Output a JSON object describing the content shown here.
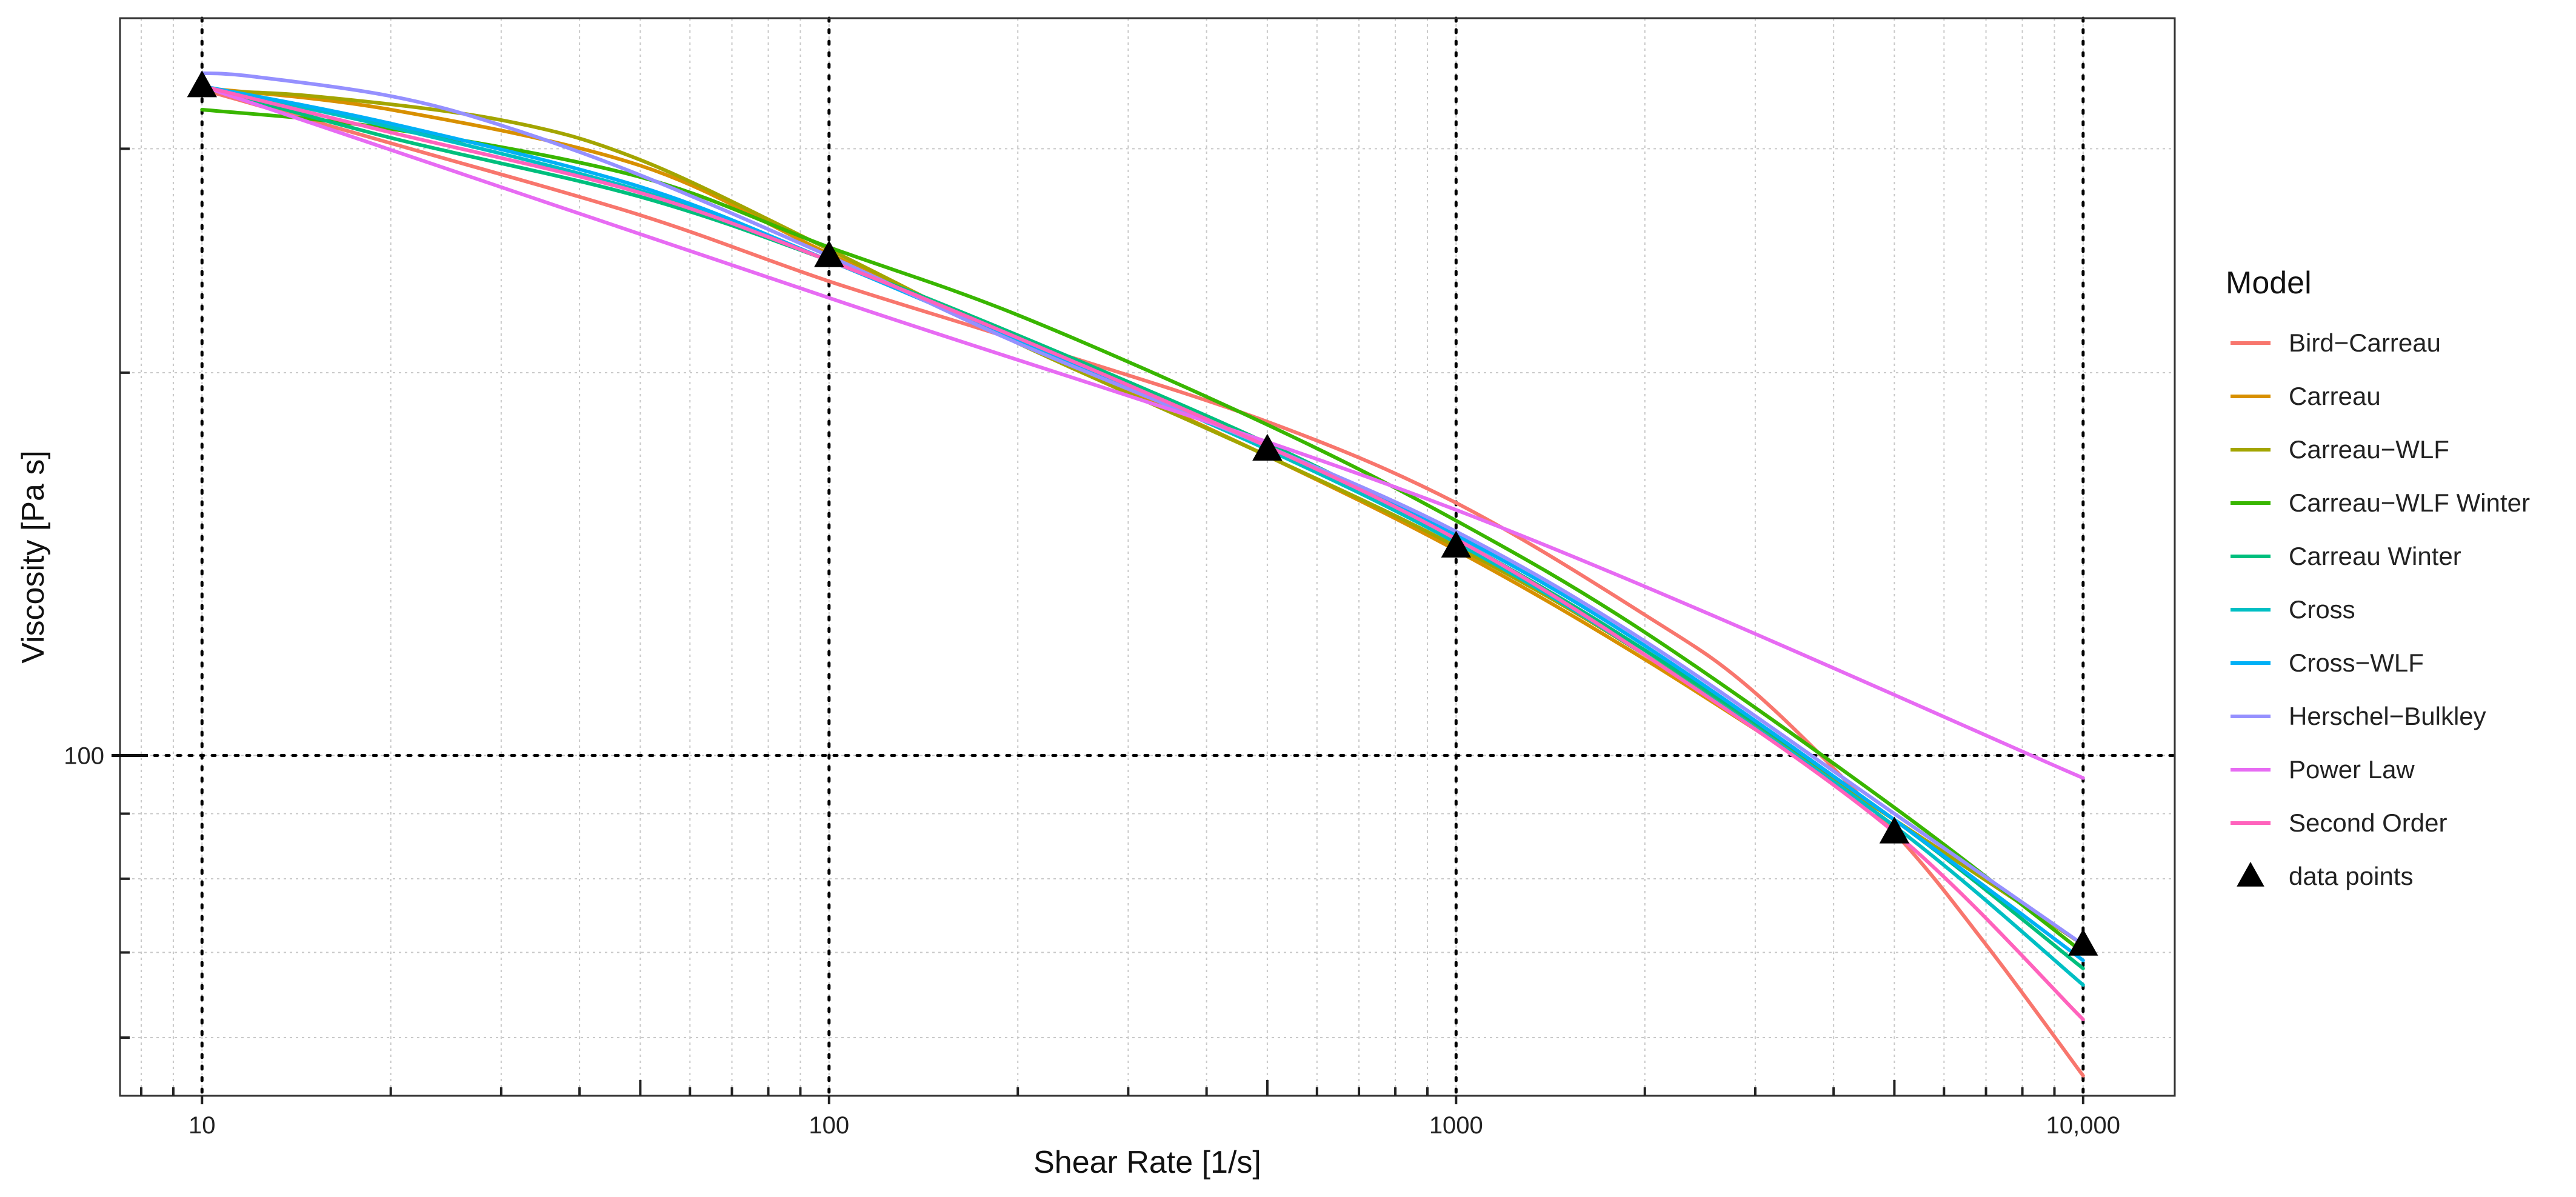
{
  "chart_data": {
    "type": "line",
    "x_scale": "log",
    "y_scale": "log",
    "xlabel": "Shear Rate [1/s]",
    "ylabel": "Viscosity [Pa s]",
    "xlim": [
      7.4,
      14000
    ],
    "ylim": [
      54,
      380
    ],
    "x_ticks": [
      10,
      100,
      1000,
      10000
    ],
    "x_tick_labels": [
      "10",
      "100",
      "1000",
      "10,000"
    ],
    "y_ticks": [
      100
    ],
    "y_tick_labels": [
      "100"
    ],
    "grid": true,
    "legend_title": "Model",
    "legend_position": "right",
    "series": [
      {
        "name": "Bird−Carreau",
        "color": "#F8766D",
        "x": [
          10,
          20,
          50,
          100,
          200,
          500,
          1000,
          2000,
          3000,
          5000,
          7000,
          10000
        ],
        "y": [
          334,
          303,
          266,
          236,
          212,
          183,
          158,
          129,
          112,
          87,
          71,
          56
        ]
      },
      {
        "name": "Carreau",
        "color": "#D89000",
        "x": [
          10,
          20,
          50,
          100,
          200,
          500,
          1000,
          2000,
          5000,
          10000
        ],
        "y": [
          335,
          322,
          291,
          248,
          212,
          172,
          145,
          119,
          89,
          71
        ]
      },
      {
        "name": "Carreau−WLF",
        "color": "#A3A500",
        "x": [
          10,
          15,
          30,
          50,
          100,
          200,
          500,
          1000,
          2000,
          5000,
          10000
        ],
        "y": [
          333,
          330,
          316,
          294,
          250,
          211,
          172,
          146,
          120,
          89,
          71
        ]
      },
      {
        "name": "Carreau−WLF Winter",
        "color": "#39B600",
        "x": [
          10,
          20,
          50,
          100,
          200,
          500,
          1000,
          2000,
          5000,
          10000
        ],
        "y": [
          322,
          311,
          285,
          251,
          222,
          182,
          153,
          125,
          91,
          70
        ]
      },
      {
        "name": "Carreau Winter",
        "color": "#00BF7D",
        "x": [
          10,
          20,
          50,
          100,
          200,
          500,
          1000,
          2000,
          5000,
          10000
        ],
        "y": [
          336,
          306,
          275,
          245,
          214,
          176,
          148,
          121,
          89,
          68
        ]
      },
      {
        "name": "Cross",
        "color": "#00BFC4",
        "x": [
          10,
          20,
          50,
          100,
          200,
          500,
          1000,
          2000,
          5000,
          10000
        ],
        "y": [
          336,
          312,
          278,
          245,
          212,
          174,
          147,
          120,
          88,
          66
        ]
      },
      {
        "name": "Cross−WLF",
        "color": "#00B0F6",
        "x": [
          10,
          20,
          50,
          100,
          200,
          500,
          1000,
          2000,
          5000,
          10000
        ],
        "y": [
          336,
          314,
          280,
          245,
          212,
          175,
          149,
          122,
          89,
          69
        ]
      },
      {
        "name": "Herschel−Bulkley",
        "color": "#9590FF",
        "x": [
          10,
          12,
          20,
          30,
          50,
          100,
          200,
          500,
          1000,
          2000,
          5000,
          10000
        ],
        "y": [
          344,
          342,
          330,
          313,
          286,
          247,
          211,
          175,
          150,
          123,
          90,
          71
        ]
      },
      {
        "name": "Power Law",
        "color": "#E76BF3",
        "x": [
          10,
          100,
          1000,
          10000
        ],
        "y": [
          336,
          229,
          156,
          96
        ]
      },
      {
        "name": "Second Order",
        "color": "#FF62BC",
        "x": [
          10,
          20,
          50,
          100,
          200,
          500,
          1000,
          2000,
          5000,
          10000
        ],
        "y": [
          336,
          309,
          277,
          245,
          213,
          175,
          148,
          120,
          87,
          62
        ]
      }
    ],
    "data_points": {
      "name": "data points",
      "color": "#000000",
      "x": [
        10,
        100,
        500,
        1000,
        5000,
        10000
      ],
      "y": [
        336,
        247,
        174,
        146,
        87,
        71
      ]
    }
  }
}
